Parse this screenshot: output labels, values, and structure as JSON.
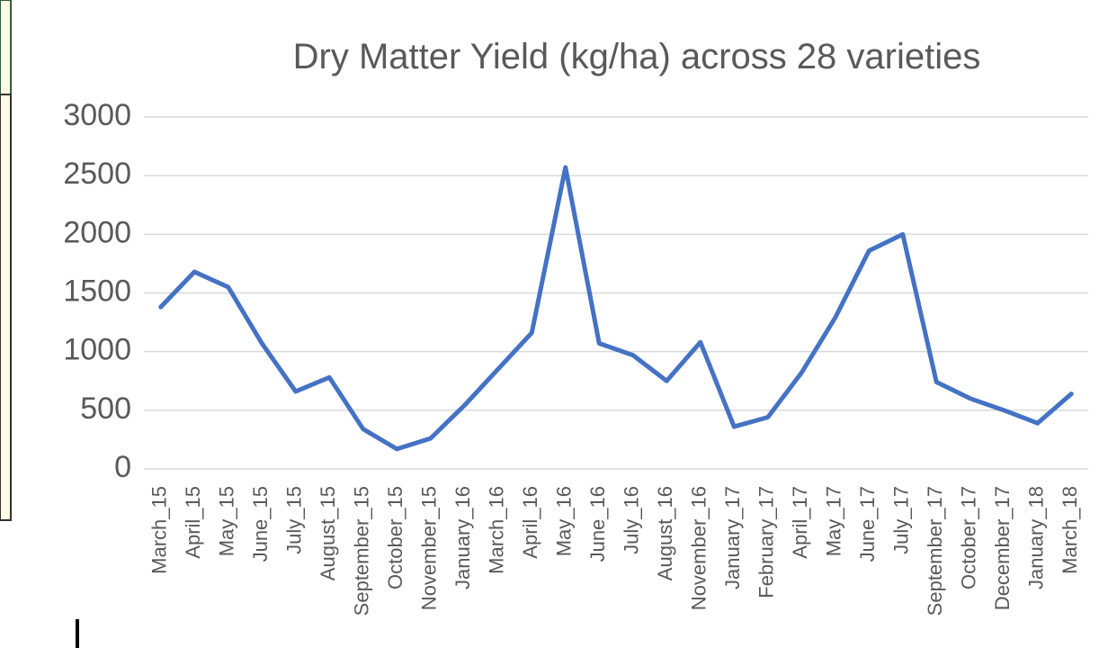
{
  "chart_data": {
    "type": "line",
    "title": "Dry Matter Yield (kg/ha) across 28 varieties",
    "categories": [
      "March_15",
      "April_15",
      "May_15",
      "June_15",
      "July_15",
      "August_15",
      "September_15",
      "October_15",
      "November_15",
      "January_16",
      "March_16",
      "April_16",
      "May_16",
      "June_16",
      "July_16",
      "August_16",
      "November_16",
      "January_17",
      "February_17",
      "April_17",
      "May_17",
      "June_17",
      "July_17",
      "September_17",
      "October_17",
      "December_17",
      "January_18",
      "March_18"
    ],
    "series": [
      {
        "name": "Dry Matter Yield",
        "color": "#4472c4",
        "values": [
          1380,
          1680,
          1550,
          1070,
          660,
          780,
          340,
          170,
          260,
          540,
          850,
          1160,
          2570,
          1070,
          970,
          750,
          1080,
          360,
          440,
          820,
          1290,
          1860,
          2000,
          740,
          600,
          500,
          390,
          640
        ]
      }
    ],
    "ylim": [
      0,
      3000
    ],
    "yticks": [
      0,
      500,
      1000,
      1500,
      2000,
      2500,
      3000
    ],
    "grid": true
  }
}
